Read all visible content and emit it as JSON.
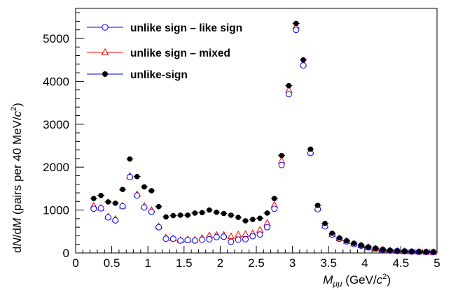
{
  "chart_data": {
    "type": "scatter",
    "xlabel": "M_{μμ} (GeV/c²)",
    "xlabel_parts": {
      "var": "M",
      "sub": "μμ",
      "unit_prefix": "(GeV/",
      "unit_c": "c",
      "unit_sup": "2",
      "unit_suffix": ")"
    },
    "ylabel": "dN/dM (pairs per 40 MeV/c²)",
    "ylabel_parts": {
      "d1": "d",
      "n": "N",
      "slash": "/d",
      "m": "M",
      "rest": " (pairs per 40 MeV/",
      "c": "c",
      "sup": "2",
      "close": ")"
    },
    "xlim": [
      0,
      5
    ],
    "ylim": [
      0,
      5700
    ],
    "x_ticks": [
      0,
      0.5,
      1,
      1.5,
      2,
      2.5,
      3,
      3.5,
      4,
      4.5,
      5
    ],
    "x_tick_labels": [
      "0",
      "0.5",
      "1",
      "1.5",
      "2",
      "2.5",
      "3",
      "3.5",
      "4",
      "4.5",
      "5"
    ],
    "y_ticks": [
      0,
      1000,
      2000,
      3000,
      4000,
      5000
    ],
    "y_tick_labels": [
      "0",
      "1000",
      "2000",
      "3000",
      "4000",
      "5000"
    ],
    "legend_position": "top-left",
    "grid": false,
    "series": [
      {
        "name": "unlike sign – like sign",
        "color": "#0000ff",
        "marker": "open-circle",
        "x": [
          0.25,
          0.35,
          0.45,
          0.55,
          0.65,
          0.75,
          0.85,
          0.95,
          1.05,
          1.15,
          1.25,
          1.35,
          1.45,
          1.55,
          1.65,
          1.75,
          1.85,
          1.95,
          2.05,
          2.15,
          2.25,
          2.35,
          2.45,
          2.55,
          2.65,
          2.75,
          2.85,
          2.95,
          3.05,
          3.15,
          3.25,
          3.35,
          3.45,
          3.55,
          3.65,
          3.75,
          3.85,
          3.95,
          4.05,
          4.15,
          4.25,
          4.35,
          4.45,
          4.55,
          4.65,
          4.75,
          4.85,
          4.95
        ],
        "y": [
          1030,
          1040,
          830,
          760,
          1090,
          1770,
          1340,
          1060,
          960,
          600,
          330,
          330,
          290,
          300,
          290,
          310,
          320,
          370,
          380,
          260,
          310,
          320,
          390,
          430,
          600,
          1030,
          2050,
          3700,
          5200,
          4370,
          2330,
          1020,
          620,
          430,
          330,
          270,
          210,
          170,
          130,
          100,
          75,
          55,
          45,
          38,
          32,
          27,
          23,
          20
        ]
      },
      {
        "name": "unlike sign – mixed",
        "color": "#ff0000",
        "marker": "open-triangle",
        "x": [
          0.25,
          0.35,
          0.45,
          0.55,
          0.65,
          0.75,
          0.85,
          0.95,
          1.05,
          1.15,
          1.25,
          1.35,
          1.45,
          1.55,
          1.65,
          1.75,
          1.85,
          1.95,
          2.05,
          2.15,
          2.25,
          2.35,
          2.45,
          2.55,
          2.65,
          2.75,
          2.85,
          2.95,
          3.05,
          3.15,
          3.25,
          3.35,
          3.45,
          3.55,
          3.65,
          3.75,
          3.85,
          3.95,
          4.05,
          4.15,
          4.25,
          4.35,
          4.45,
          4.55,
          4.65,
          4.75,
          4.85,
          4.95
        ],
        "y": [
          1100,
          1050,
          850,
          790,
          1100,
          1800,
          1370,
          1100,
          1000,
          620,
          360,
          340,
          300,
          320,
          310,
          350,
          410,
          420,
          420,
          390,
          430,
          440,
          460,
          540,
          700,
          1120,
          2150,
          3800,
          5280,
          4420,
          2360,
          1050,
          640,
          440,
          340,
          280,
          220,
          175,
          135,
          105,
          78,
          58,
          47,
          40,
          34,
          28,
          24,
          21
        ]
      },
      {
        "name": "unlike-sign",
        "color": "#000000",
        "marker": "filled-circle",
        "x": [
          0.25,
          0.35,
          0.45,
          0.55,
          0.65,
          0.75,
          0.85,
          0.95,
          1.05,
          1.15,
          1.25,
          1.35,
          1.45,
          1.55,
          1.65,
          1.75,
          1.85,
          1.95,
          2.05,
          2.15,
          2.25,
          2.35,
          2.45,
          2.55,
          2.65,
          2.75,
          2.85,
          2.95,
          3.05,
          3.15,
          3.25,
          3.35,
          3.45,
          3.55,
          3.65,
          3.75,
          3.85,
          3.95,
          4.05,
          4.15,
          4.25,
          4.35,
          4.45,
          4.55,
          4.65,
          4.75,
          4.85,
          4.95
        ],
        "y": [
          1270,
          1340,
          1190,
          1160,
          1480,
          2190,
          1780,
          1540,
          1450,
          1080,
          840,
          870,
          880,
          880,
          930,
          940,
          1000,
          950,
          920,
          880,
          830,
          750,
          780,
          810,
          930,
          1270,
          2270,
          3900,
          5350,
          4500,
          2420,
          1110,
          690,
          460,
          350,
          285,
          225,
          180,
          140,
          108,
          80,
          60,
          48,
          41,
          35,
          29,
          25,
          22
        ]
      }
    ]
  }
}
